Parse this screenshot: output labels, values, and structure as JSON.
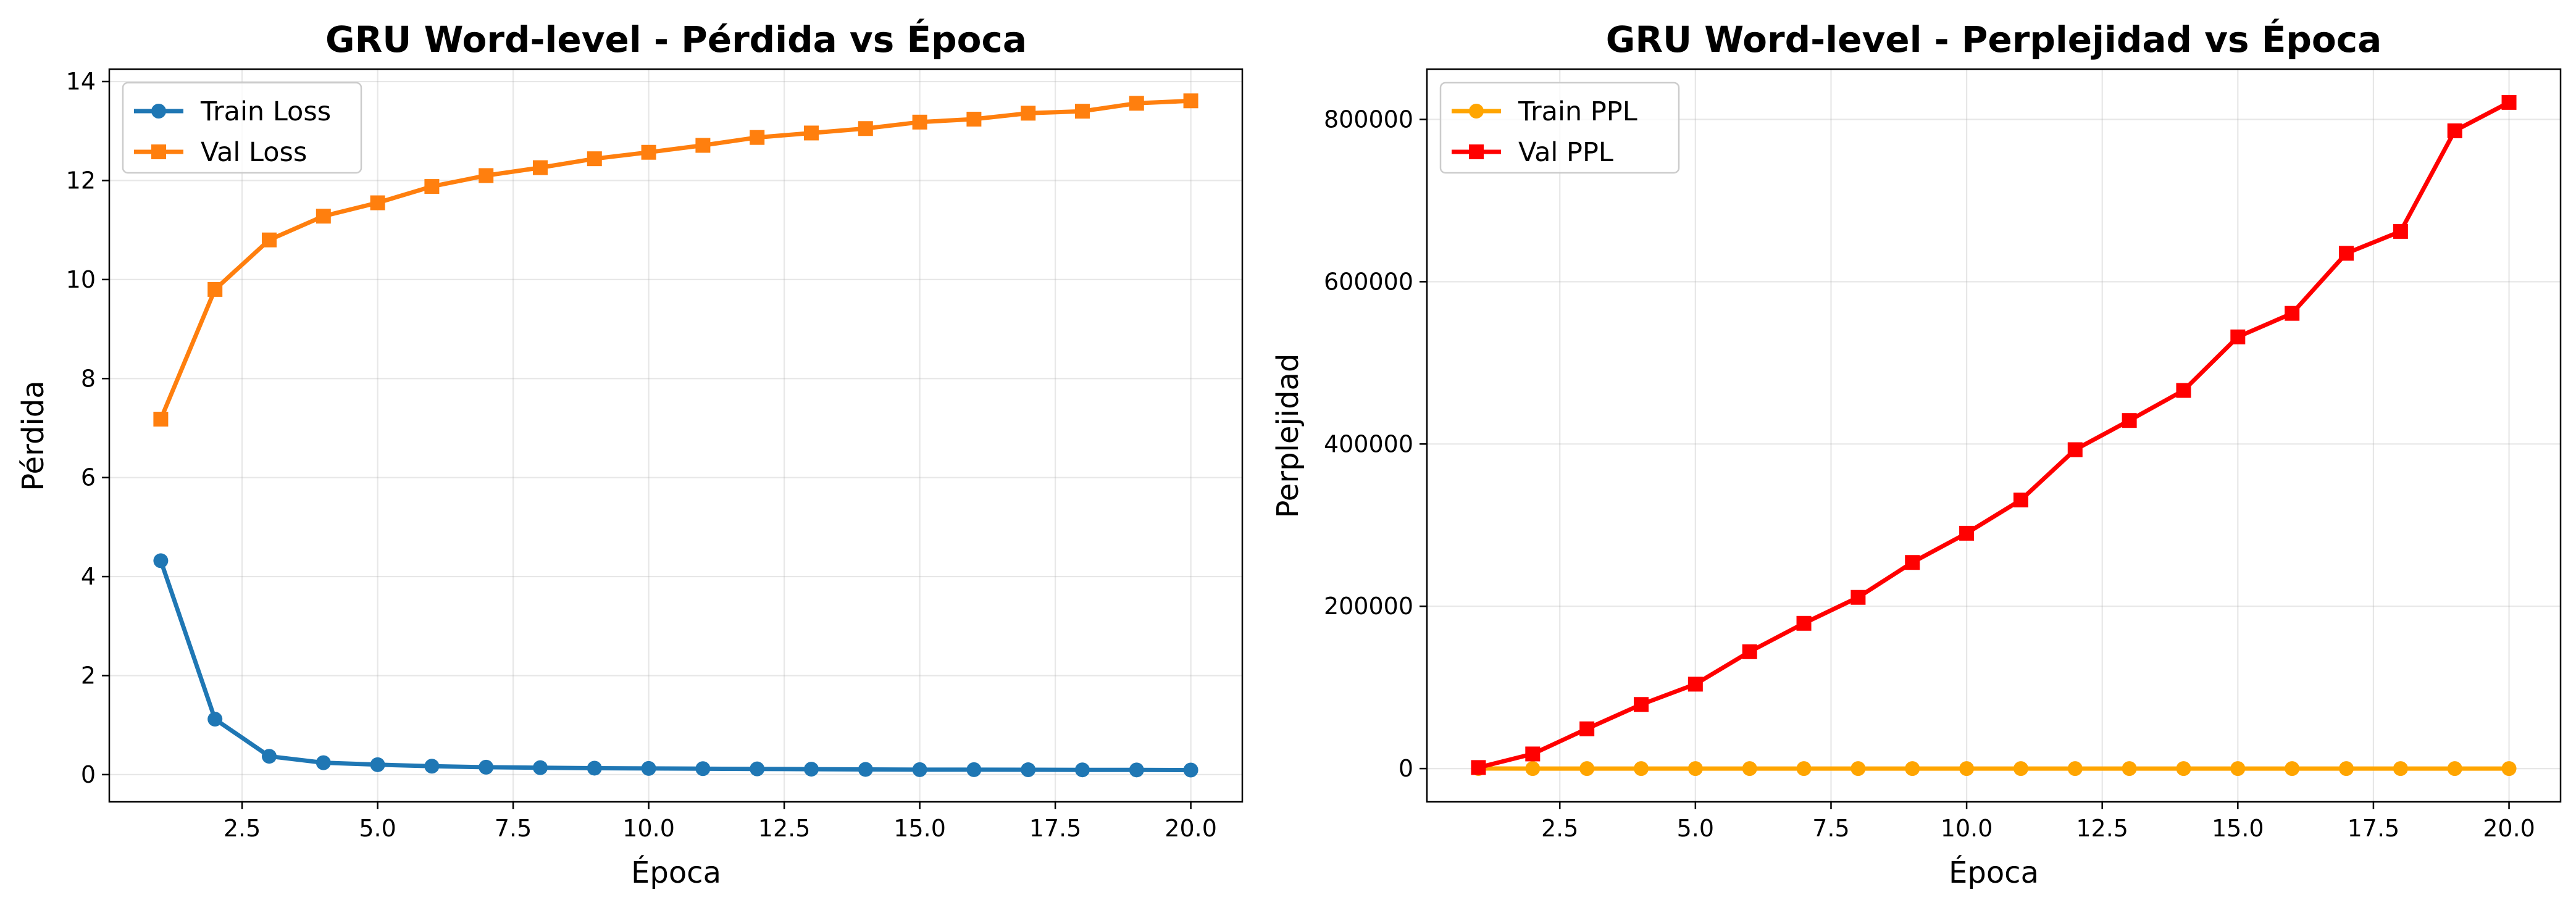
{
  "chart_data": [
    {
      "type": "line",
      "title": "GRU Word-level - Pérdida vs Época",
      "xlabel": "Época",
      "ylabel": "Pérdida",
      "xlim": [
        0.05,
        20.95
      ],
      "ylim": [
        -0.55,
        14.25
      ],
      "xticks": [
        2.5,
        5.0,
        7.5,
        10.0,
        12.5,
        15.0,
        17.5,
        20.0
      ],
      "xtick_labels": [
        "2.5",
        "5.0",
        "7.5",
        "10.0",
        "12.5",
        "15.0",
        "17.5",
        "20.0"
      ],
      "yticks": [
        0,
        2,
        4,
        6,
        8,
        10,
        12,
        14
      ],
      "ytick_labels": [
        "0",
        "2",
        "4",
        "6",
        "8",
        "10",
        "12",
        "14"
      ],
      "grid": true,
      "legend": "upper-left",
      "x": [
        1,
        2,
        3,
        4,
        5,
        6,
        7,
        8,
        9,
        10,
        11,
        12,
        13,
        14,
        15,
        16,
        17,
        18,
        19,
        20
      ],
      "series": [
        {
          "name": "Train Loss",
          "color": "#1f77b4",
          "marker": "circle",
          "values": [
            4.32,
            1.12,
            0.37,
            0.24,
            0.2,
            0.17,
            0.15,
            0.14,
            0.13,
            0.125,
            0.12,
            0.115,
            0.11,
            0.105,
            0.1,
            0.1,
            0.098,
            0.096,
            0.094,
            0.092
          ]
        },
        {
          "name": "Val Loss",
          "color": "#ff7f0e",
          "marker": "square",
          "values": [
            7.18,
            9.8,
            10.8,
            11.28,
            11.55,
            11.88,
            12.1,
            12.26,
            12.44,
            12.57,
            12.71,
            12.87,
            12.96,
            13.05,
            13.18,
            13.24,
            13.36,
            13.4,
            13.56,
            13.61
          ]
        }
      ]
    },
    {
      "type": "line",
      "title": "GRU Word-level - Perplejidad vs Época",
      "xlabel": "Época",
      "ylabel": "Perplejidad",
      "xlim": [
        0.05,
        20.95
      ],
      "ylim": [
        -41000,
        862000
      ],
      "xticks": [
        2.5,
        5.0,
        7.5,
        10.0,
        12.5,
        15.0,
        17.5,
        20.0
      ],
      "xtick_labels": [
        "2.5",
        "5.0",
        "7.5",
        "10.0",
        "12.5",
        "15.0",
        "17.5",
        "20.0"
      ],
      "yticks": [
        0,
        200000,
        400000,
        600000,
        800000
      ],
      "ytick_labels": [
        "0",
        "200000",
        "400000",
        "600000",
        "800000"
      ],
      "grid": true,
      "legend": "upper-left",
      "x": [
        1,
        2,
        3,
        4,
        5,
        6,
        7,
        8,
        9,
        10,
        11,
        12,
        13,
        14,
        15,
        16,
        17,
        18,
        19,
        20
      ],
      "series": [
        {
          "name": "Train PPL",
          "color": "#ffa500",
          "marker": "circle",
          "values": [
            75,
            3.1,
            1.45,
            1.27,
            1.22,
            1.19,
            1.16,
            1.15,
            1.14,
            1.13,
            1.13,
            1.12,
            1.12,
            1.11,
            1.11,
            1.1,
            1.1,
            1.1,
            1.1,
            1.1
          ]
        },
        {
          "name": "Val PPL",
          "color": "#ff0000",
          "marker": "square",
          "values": [
            1300,
            18000,
            49000,
            79000,
            104000,
            144000,
            179000,
            211000,
            254000,
            290000,
            331000,
            393000,
            429000,
            466000,
            532000,
            561000,
            635000,
            662000,
            786000,
            821000
          ]
        }
      ]
    }
  ]
}
